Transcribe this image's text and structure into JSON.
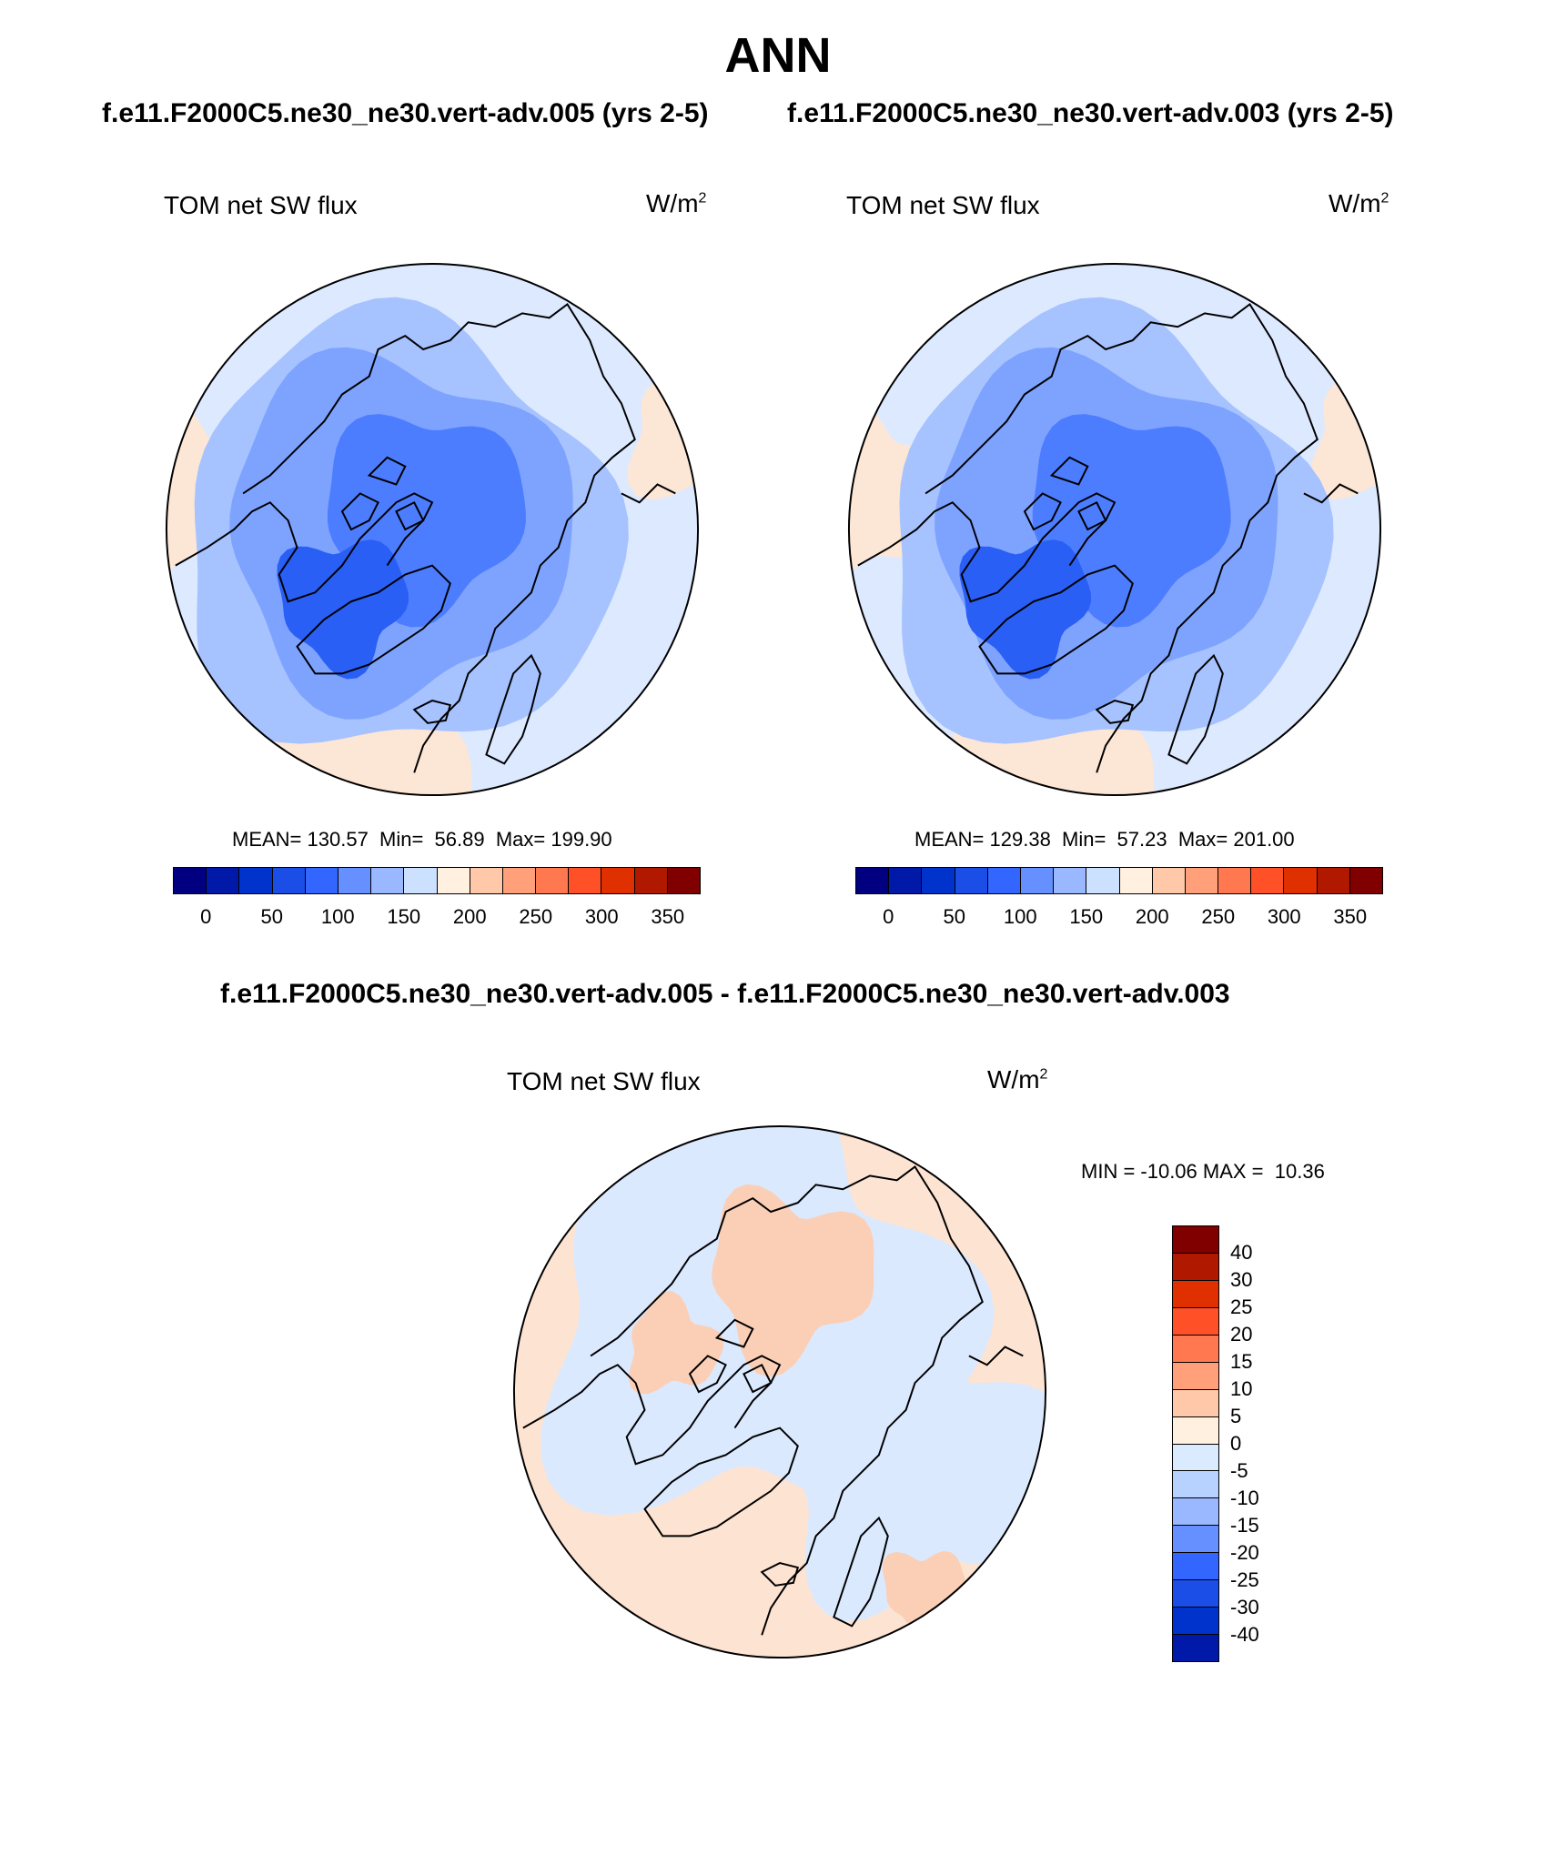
{
  "title": "ANN",
  "panels": [
    {
      "case": "f.e11.F2000C5.ne30_ne30.vert-adv.005 (yrs 2-5)",
      "variable": "TOM net SW flux",
      "units_base": "W/m",
      "units_exp": "2",
      "stats": "MEAN= 130.57  Min=  56.89  Max= 199.90",
      "colorbar": {
        "colors": [
          "#000080",
          "#0019a8",
          "#0033cc",
          "#1a4ee6",
          "#3366ff",
          "#6690ff",
          "#99b8ff",
          "#cce0ff",
          "#fff0e0",
          "#ffc8a8",
          "#ffa07a",
          "#ff7850",
          "#ff5028",
          "#e03000",
          "#b01800",
          "#800000"
        ],
        "ticks": [
          "0",
          "50",
          "100",
          "150",
          "200",
          "250",
          "300",
          "350"
        ]
      }
    },
    {
      "case": "f.e11.F2000C5.ne30_ne30.vert-adv.003 (yrs 2-5)",
      "variable": "TOM net SW flux",
      "units_base": "W/m",
      "units_exp": "2",
      "stats": "MEAN= 129.38  Min=  57.23  Max= 201.00",
      "colorbar": {
        "colors": [
          "#000080",
          "#0019a8",
          "#0033cc",
          "#1a4ee6",
          "#3366ff",
          "#6690ff",
          "#99b8ff",
          "#cce0ff",
          "#fff0e0",
          "#ffc8a8",
          "#ffa07a",
          "#ff7850",
          "#ff5028",
          "#e03000",
          "#b01800",
          "#800000"
        ],
        "ticks": [
          "0",
          "50",
          "100",
          "150",
          "200",
          "250",
          "300",
          "350"
        ]
      }
    }
  ],
  "diff": {
    "title": "f.e11.F2000C5.ne30_ne30.vert-adv.005 - f.e11.F2000C5.ne30_ne30.vert-adv.003",
    "variable": "TOM net SW flux",
    "units_base": "W/m",
    "units_exp": "2",
    "stats": "MIN = -10.06 MAX =  10.36",
    "colorbar": {
      "colors": [
        "#800000",
        "#b01800",
        "#e03000",
        "#ff5028",
        "#ff7850",
        "#ffa07a",
        "#ffc8a8",
        "#fff0e0",
        "#daeaff",
        "#b8d2ff",
        "#99b8ff",
        "#6690ff",
        "#3366ff",
        "#1a4ee6",
        "#0033cc",
        "#0019a8"
      ],
      "ticks": [
        "40",
        "30",
        "25",
        "20",
        "15",
        "10",
        "5",
        "0",
        "-5",
        "-10",
        "-15",
        "-20",
        "-25",
        "-30",
        "-40"
      ]
    }
  },
  "colors": {
    "abs_bg": "#dce9ff",
    "abs_l1": "#a6c2ff",
    "abs_l2": "#7ea3ff",
    "abs_l3": "#4d7dff",
    "abs_l4": "#2a5ff5",
    "abs_warm": "#fce6d6",
    "diff_pos": "#fde3d2",
    "diff_neg": "#dbe9ff",
    "diff_pos2": "#fbcfb6",
    "coast": "#000000"
  }
}
